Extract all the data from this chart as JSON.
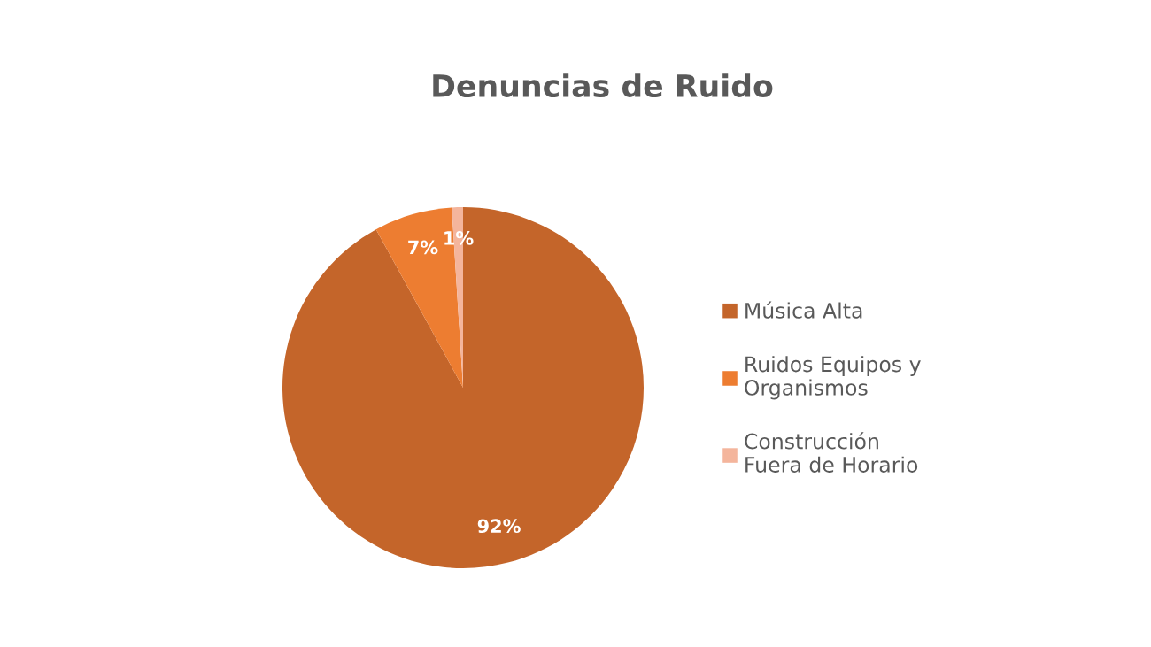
{
  "chart_data": {
    "type": "pie",
    "title": "Denuncias de Ruido",
    "categories": [
      "Música Alta",
      "Ruidos Equipos y\nOrganismos",
      "Construcción\nFuera de Horario"
    ],
    "values": [
      92,
      7,
      1
    ],
    "colors": [
      "#c4652a",
      "#ed7d31",
      "#f4b59c"
    ],
    "value_labels": [
      "92%",
      "7%",
      "1%"
    ],
    "legend": "right"
  }
}
